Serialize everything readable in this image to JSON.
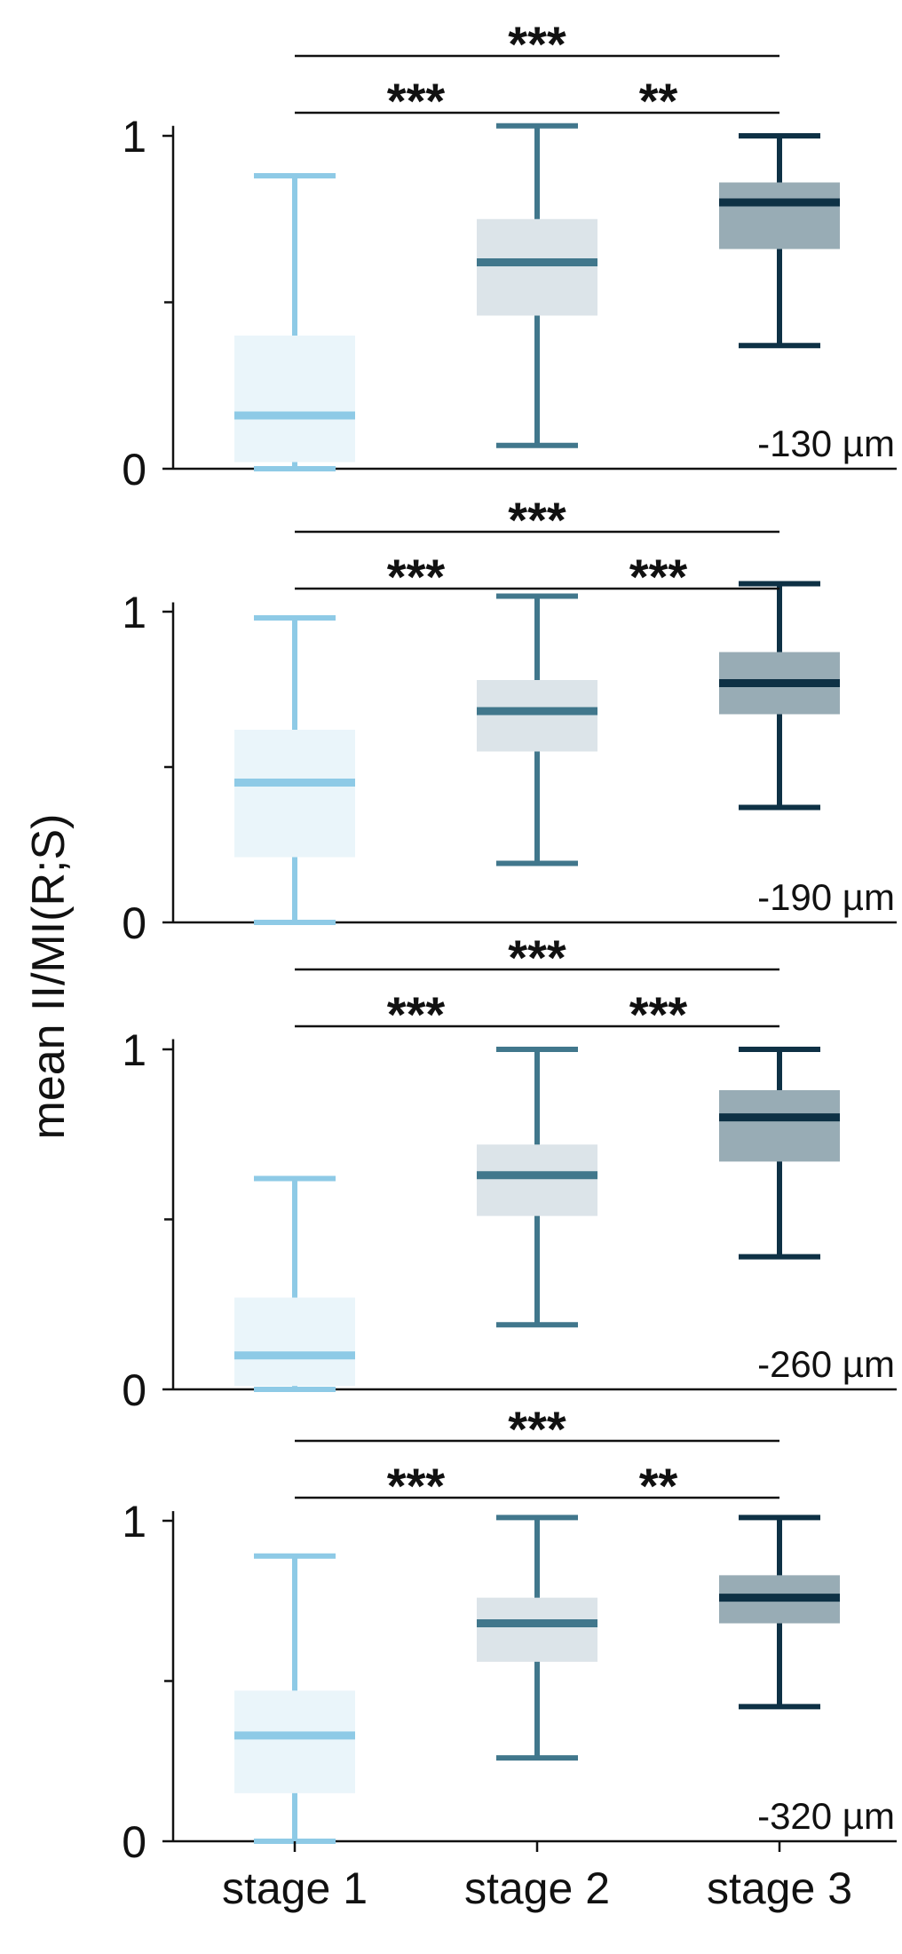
{
  "ylabel": "mean II/MI(R;S)",
  "categories": [
    "stage 1",
    "stage 2",
    "stage 3"
  ],
  "colors": {
    "stage1_line": "#8ecae6",
    "stage1_box": "#eaf5fa",
    "stage2_line": "#41778c",
    "stage2_box": "#dce4e9",
    "stage3_line": "#0e3145",
    "stage3_box": "#98acb5",
    "axis": "#111111"
  },
  "chart_data": [
    {
      "type": "box",
      "label": "-130 µm",
      "y_ticks": [
        0,
        1
      ],
      "ylim": [
        0,
        1.0
      ],
      "series": [
        {
          "category": "stage 1",
          "whisker_low": 0.0,
          "q1": 0.02,
          "median": 0.16,
          "q3": 0.4,
          "whisker_high": 0.88
        },
        {
          "category": "stage 2",
          "whisker_low": 0.07,
          "q1": 0.46,
          "median": 0.62,
          "q3": 0.75,
          "whisker_high": 1.03
        },
        {
          "category": "stage 3",
          "whisker_low": 0.37,
          "q1": 0.66,
          "median": 0.8,
          "q3": 0.86,
          "whisker_high": 1.0
        }
      ],
      "significance": [
        {
          "from": "stage 1",
          "to": "stage 3",
          "label": "***"
        },
        {
          "from": "stage 1",
          "to": "stage 2",
          "label": "***"
        },
        {
          "from": "stage 2",
          "to": "stage 3",
          "label": "**"
        }
      ]
    },
    {
      "type": "box",
      "label": "-190 µm",
      "y_ticks": [
        0,
        1
      ],
      "ylim": [
        0,
        1.0
      ],
      "series": [
        {
          "category": "stage 1",
          "whisker_low": 0.0,
          "q1": 0.21,
          "median": 0.45,
          "q3": 0.62,
          "whisker_high": 0.98
        },
        {
          "category": "stage 2",
          "whisker_low": 0.19,
          "q1": 0.55,
          "median": 0.68,
          "q3": 0.78,
          "whisker_high": 1.05
        },
        {
          "category": "stage 3",
          "whisker_low": 0.37,
          "q1": 0.67,
          "median": 0.77,
          "q3": 0.87,
          "whisker_high": 1.09
        }
      ],
      "significance": [
        {
          "from": "stage 1",
          "to": "stage 3",
          "label": "***"
        },
        {
          "from": "stage 1",
          "to": "stage 2",
          "label": "***"
        },
        {
          "from": "stage 2",
          "to": "stage 3",
          "label": "***"
        }
      ]
    },
    {
      "type": "box",
      "label": "-260 µm",
      "y_ticks": [
        0,
        1
      ],
      "ylim": [
        0,
        1.0
      ],
      "series": [
        {
          "category": "stage 1",
          "whisker_low": 0.0,
          "q1": 0.01,
          "median": 0.1,
          "q3": 0.27,
          "whisker_high": 0.62
        },
        {
          "category": "stage 2",
          "whisker_low": 0.19,
          "q1": 0.51,
          "median": 0.63,
          "q3": 0.72,
          "whisker_high": 1.0
        },
        {
          "category": "stage 3",
          "whisker_low": 0.39,
          "q1": 0.67,
          "median": 0.8,
          "q3": 0.88,
          "whisker_high": 1.0
        }
      ],
      "significance": [
        {
          "from": "stage 1",
          "to": "stage 3",
          "label": "***"
        },
        {
          "from": "stage 1",
          "to": "stage 2",
          "label": "***"
        },
        {
          "from": "stage 2",
          "to": "stage 3",
          "label": "***"
        }
      ]
    },
    {
      "type": "box",
      "label": "-320 µm",
      "y_ticks": [
        0,
        1
      ],
      "ylim": [
        0,
        1.0
      ],
      "series": [
        {
          "category": "stage 1",
          "whisker_low": 0.0,
          "q1": 0.15,
          "median": 0.33,
          "q3": 0.47,
          "whisker_high": 0.89
        },
        {
          "category": "stage 2",
          "whisker_low": 0.26,
          "q1": 0.56,
          "median": 0.68,
          "q3": 0.76,
          "whisker_high": 1.01
        },
        {
          "category": "stage 3",
          "whisker_low": 0.42,
          "q1": 0.68,
          "median": 0.76,
          "q3": 0.83,
          "whisker_high": 1.01
        }
      ],
      "significance": [
        {
          "from": "stage 1",
          "to": "stage 3",
          "label": "***"
        },
        {
          "from": "stage 1",
          "to": "stage 2",
          "label": "***"
        },
        {
          "from": "stage 2",
          "to": "stage 3",
          "label": "**"
        }
      ]
    }
  ]
}
